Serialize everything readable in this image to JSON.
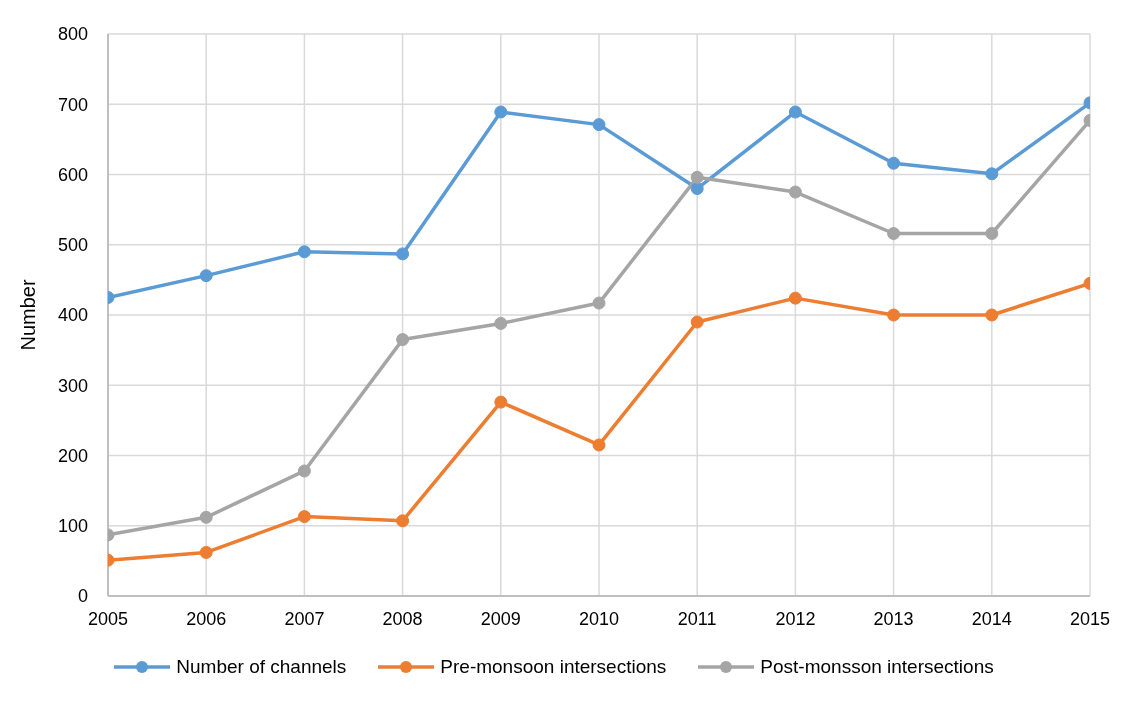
{
  "chart_data": {
    "type": "line",
    "ylabel": "Number",
    "x": [
      2005,
      2006,
      2007,
      2008,
      2009,
      2010,
      2011,
      2012,
      2013,
      2014,
      2015
    ],
    "xlim": [
      2005,
      2015
    ],
    "xticks": [
      2005,
      2006,
      2007,
      2008,
      2009,
      2010,
      2011,
      2012,
      2013,
      2014,
      2015
    ],
    "ylim": [
      0,
      800
    ],
    "yticks": [
      0,
      100,
      200,
      300,
      400,
      500,
      600,
      700,
      800
    ],
    "grid": true,
    "legend": "bottom",
    "marker": "circle",
    "line_style": "solid",
    "series": [
      {
        "name": "Number of channels",
        "color": "#5b9bd5",
        "values": [
          425,
          456,
          490,
          487,
          689,
          671,
          580,
          689,
          616,
          601,
          702
        ]
      },
      {
        "name": "Pre-monsoon intersections",
        "color": "#ed7d31",
        "values": [
          51,
          62,
          113,
          107,
          276,
          215,
          390,
          424,
          400,
          400,
          445
        ]
      },
      {
        "name": "Post-monsson intersections",
        "color": "#a5a5a5",
        "values": [
          87,
          112,
          178,
          365,
          388,
          417,
          596,
          575,
          516,
          516,
          677
        ]
      }
    ]
  }
}
